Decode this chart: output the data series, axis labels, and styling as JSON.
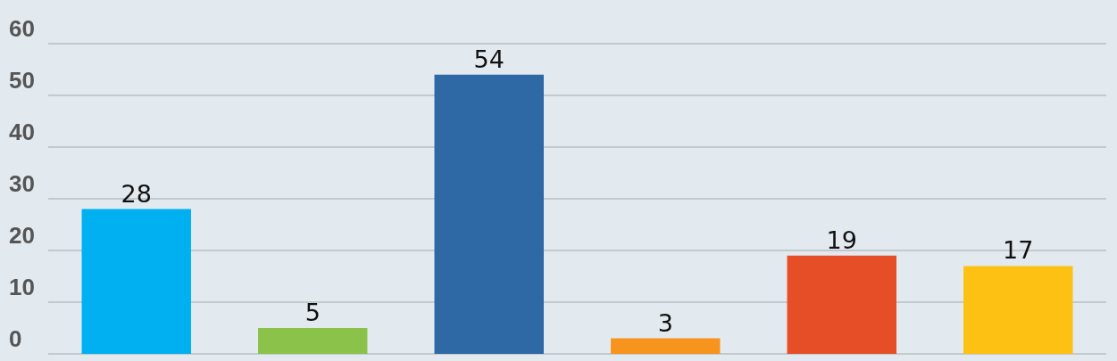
{
  "chart_data": {
    "type": "bar",
    "categories": [
      null,
      null,
      null,
      null,
      null,
      null
    ],
    "values": [
      28,
      5,
      54,
      3,
      19,
      17
    ],
    "colors": [
      "#00b0f0",
      "#8bc34a",
      "#2e69a6",
      "#f7941d",
      "#e64e27",
      "#fdc113"
    ],
    "ylim": [
      0,
      60
    ],
    "yticks": [
      0,
      10,
      20,
      30,
      40,
      50,
      60
    ],
    "grid": "y",
    "data_labels": true
  }
}
